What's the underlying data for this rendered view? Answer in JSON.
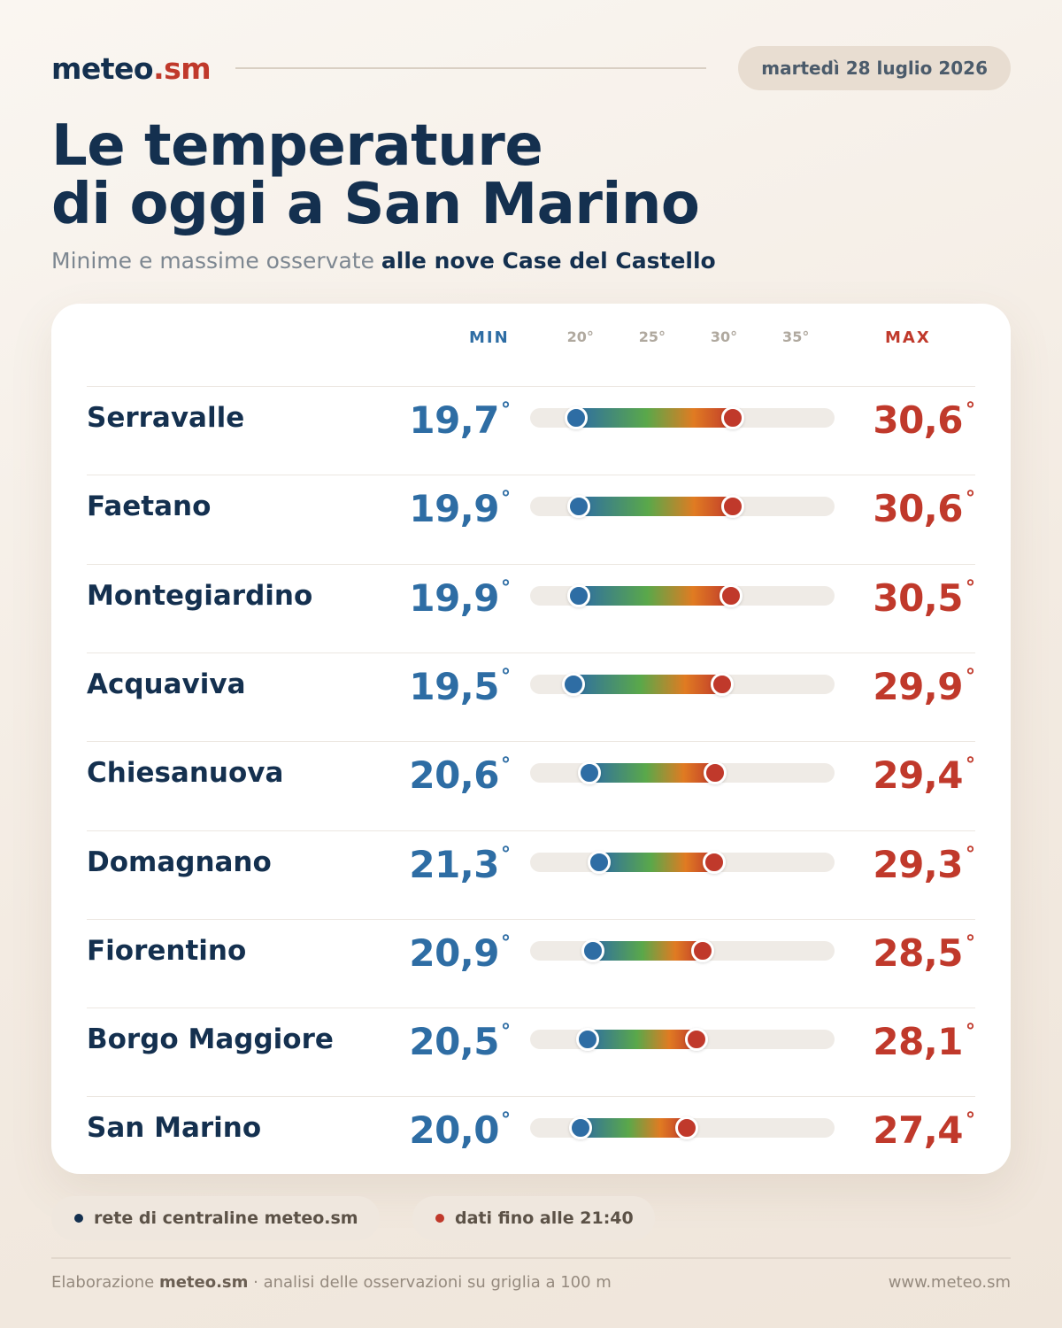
{
  "header": {
    "brand_main": "meteo",
    "brand_accent": ".sm",
    "date": "martedì 28 luglio 2026"
  },
  "title": {
    "line1": "Le temperature",
    "line2": "di oggi a San Marino"
  },
  "subtitle": {
    "plain": "Minime e massime osservate ",
    "bold": "alle nove Case del Castello"
  },
  "columns": {
    "min_label": "MIN",
    "max_label": "MAX",
    "degree_symbol": "°"
  },
  "chart_data": {
    "type": "range-bar",
    "axis": {
      "min": 16.5,
      "max": 37.7,
      "ticks": [
        20,
        25,
        30,
        35
      ],
      "tick_labels": [
        "20°",
        "25°",
        "30°",
        "35°"
      ]
    },
    "rows": [
      {
        "name": "Serravalle",
        "min": 19.7,
        "max": 30.6,
        "min_label": "19,7",
        "max_label": "30,6"
      },
      {
        "name": "Faetano",
        "min": 19.9,
        "max": 30.6,
        "min_label": "19,9",
        "max_label": "30,6"
      },
      {
        "name": "Montegiardino",
        "min": 19.9,
        "max": 30.5,
        "min_label": "19,9",
        "max_label": "30,5"
      },
      {
        "name": "Acquaviva",
        "min": 19.5,
        "max": 29.9,
        "min_label": "19,5",
        "max_label": "29,9"
      },
      {
        "name": "Chiesanuova",
        "min": 20.6,
        "max": 29.4,
        "min_label": "20,6",
        "max_label": "29,4"
      },
      {
        "name": "Domagnano",
        "min": 21.3,
        "max": 29.3,
        "min_label": "21,3",
        "max_label": "29,3"
      },
      {
        "name": "Fiorentino",
        "min": 20.9,
        "max": 28.5,
        "min_label": "20,9",
        "max_label": "28,5"
      },
      {
        "name": "Borgo Maggiore",
        "min": 20.5,
        "max": 28.1,
        "min_label": "20,5",
        "max_label": "28,1"
      },
      {
        "name": "San Marino",
        "min": 20.0,
        "max": 27.4,
        "min_label": "20,0",
        "max_label": "27,4"
      }
    ]
  },
  "chips": [
    {
      "label": "rete di centraline meteo.sm",
      "bullet_color": "#14304f"
    },
    {
      "label": "dati fino alle 21:40",
      "bullet_color": "#c0392b"
    }
  ],
  "footer": {
    "left_prefix": "Elaborazione ",
    "left_bold": "meteo.sm",
    "left_suffix": " · analisi delle osservazioni su griglia a 100 m",
    "right": "www.meteo.sm"
  },
  "colors": {
    "min": "#2e6da4",
    "max": "#c0392b",
    "navy": "#14304f"
  }
}
